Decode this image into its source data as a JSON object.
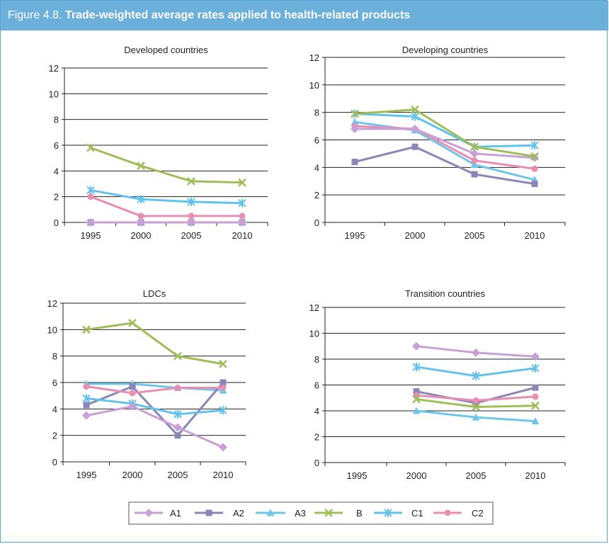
{
  "figure": {
    "label": "Figure 4.8.",
    "title": "Trade-weighted average rates applied to health-related products"
  },
  "series_styles": [
    {
      "name": "A1",
      "color": "#c9a0d6",
      "marker": "diamond"
    },
    {
      "name": "A2",
      "color": "#8b86b8",
      "marker": "square"
    },
    {
      "name": "A3",
      "color": "#6ec6e8",
      "marker": "triangle"
    },
    {
      "name": "B",
      "color": "#9fbd58",
      "marker": "x"
    },
    {
      "name": "C1",
      "color": "#62c2ea",
      "marker": "star"
    },
    {
      "name": "C2",
      "color": "#e78fb3",
      "marker": "circle"
    }
  ],
  "chart_data": [
    {
      "type": "line",
      "title": "Developed countries",
      "categories": [
        "1995",
        "2000",
        "2005",
        "2010"
      ],
      "ylim": [
        0,
        12
      ],
      "yticks": [
        0,
        2,
        4,
        6,
        8,
        10,
        12
      ],
      "grid": "horizontal",
      "series": [
        {
          "name": "A1",
          "values": [
            0,
            0,
            0,
            0
          ]
        },
        {
          "name": "A2",
          "values": [
            0,
            0,
            0,
            0
          ]
        },
        {
          "name": "A3",
          "values": [
            0,
            0,
            0,
            0
          ]
        },
        {
          "name": "B",
          "values": [
            5.8,
            4.4,
            3.2,
            3.1
          ]
        },
        {
          "name": "C1",
          "values": [
            2.5,
            1.8,
            1.6,
            1.5
          ]
        },
        {
          "name": "C2",
          "values": [
            2.0,
            0.5,
            0.5,
            0.5
          ]
        }
      ]
    },
    {
      "type": "line",
      "title": "Developing countries",
      "categories": [
        "1995",
        "2000",
        "2005",
        "2010"
      ],
      "ylim": [
        0,
        12
      ],
      "yticks": [
        0,
        2,
        4,
        6,
        8,
        10,
        12
      ],
      "grid": "horizontal",
      "series": [
        {
          "name": "A1",
          "values": [
            6.8,
            6.8,
            5.0,
            4.7
          ]
        },
        {
          "name": "A2",
          "values": [
            4.4,
            5.5,
            3.5,
            2.8
          ]
        },
        {
          "name": "A3",
          "values": [
            7.3,
            6.7,
            4.2,
            3.1
          ]
        },
        {
          "name": "B",
          "values": [
            7.9,
            8.2,
            5.5,
            4.8
          ]
        },
        {
          "name": "C1",
          "values": [
            7.9,
            7.7,
            5.5,
            5.6
          ]
        },
        {
          "name": "C2",
          "values": [
            7.0,
            6.8,
            4.5,
            3.9
          ]
        }
      ]
    },
    {
      "type": "line",
      "title": "LDCs",
      "categories": [
        "1995",
        "2000",
        "2005",
        "2010"
      ],
      "ylim": [
        0,
        12
      ],
      "yticks": [
        0,
        2,
        4,
        6,
        8,
        10,
        12
      ],
      "grid": "horizontal",
      "series": [
        {
          "name": "A1",
          "values": [
            3.5,
            4.2,
            2.6,
            1.1
          ]
        },
        {
          "name": "A2",
          "values": [
            4.3,
            5.7,
            2.0,
            6.0
          ]
        },
        {
          "name": "A3",
          "values": [
            5.9,
            5.9,
            5.6,
            5.4
          ]
        },
        {
          "name": "B",
          "values": [
            10.0,
            10.5,
            8.0,
            7.4
          ]
        },
        {
          "name": "C1",
          "values": [
            4.8,
            4.4,
            3.6,
            3.9
          ]
        },
        {
          "name": "C2",
          "values": [
            5.7,
            5.2,
            5.6,
            5.6
          ]
        }
      ]
    },
    {
      "type": "line",
      "title": "Transition countries",
      "categories": [
        "1995",
        "2000",
        "2005",
        "2010"
      ],
      "ylim": [
        0,
        12
      ],
      "yticks": [
        0,
        2,
        4,
        6,
        8,
        10,
        12
      ],
      "grid": "horizontal",
      "series": [
        {
          "name": "A1",
          "values": [
            null,
            9.0,
            8.5,
            8.2
          ]
        },
        {
          "name": "A2",
          "values": [
            null,
            5.5,
            4.6,
            5.8
          ]
        },
        {
          "name": "A3",
          "values": [
            null,
            4.0,
            3.5,
            3.2
          ]
        },
        {
          "name": "B",
          "values": [
            null,
            4.9,
            4.3,
            4.4
          ]
        },
        {
          "name": "C1",
          "values": [
            null,
            7.4,
            6.7,
            7.3
          ]
        },
        {
          "name": "C2",
          "values": [
            null,
            5.2,
            4.8,
            5.1
          ]
        }
      ]
    }
  ]
}
